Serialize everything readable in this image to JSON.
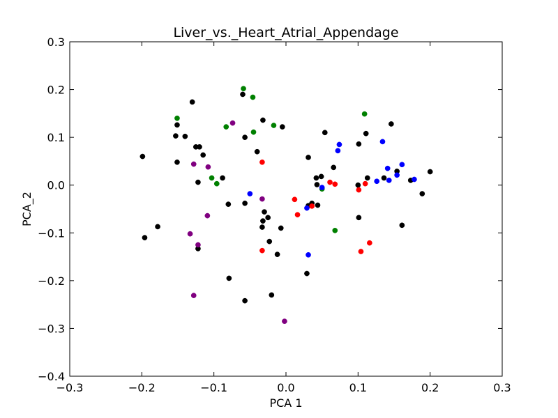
{
  "chart_data": {
    "type": "scatter",
    "title": "Liver_vs._Heart_Atrial_Appendage",
    "xlabel": "PCA 1",
    "ylabel": "PCA_2",
    "xlim": [
      -0.3,
      0.3
    ],
    "ylim": [
      -0.4,
      0.3
    ],
    "xticks": [
      -0.3,
      -0.2,
      -0.1,
      0.0,
      0.1,
      0.2,
      0.3
    ],
    "yticks": [
      -0.4,
      -0.3,
      -0.2,
      -0.1,
      0.0,
      0.1,
      0.2,
      0.3
    ],
    "xtick_labels": [
      "−0.3",
      "−0.2",
      "−0.1",
      "0.0",
      "0.1",
      "0.2",
      "0.3"
    ],
    "ytick_labels": [
      "−0.4",
      "−0.3",
      "−0.2",
      "−0.1",
      "0.0",
      "0.1",
      "0.2",
      "0.3"
    ],
    "grid": false,
    "series": [
      {
        "color": "#000000",
        "points": [
          [
            -0.199,
            0.06
          ],
          [
            -0.196,
            -0.11
          ],
          [
            -0.178,
            -0.087
          ],
          [
            -0.151,
            0.126
          ],
          [
            -0.153,
            0.103
          ],
          [
            -0.151,
            0.048
          ],
          [
            -0.14,
            0.102
          ],
          [
            -0.13,
            0.174
          ],
          [
            -0.125,
            0.08
          ],
          [
            -0.12,
            0.08
          ],
          [
            -0.115,
            0.063
          ],
          [
            -0.122,
            0.006
          ],
          [
            -0.122,
            -0.133
          ],
          [
            -0.088,
            0.015
          ],
          [
            -0.08,
            -0.04
          ],
          [
            -0.079,
            -0.195
          ],
          [
            -0.06,
            0.19
          ],
          [
            -0.057,
            0.1
          ],
          [
            -0.057,
            -0.038
          ],
          [
            -0.057,
            -0.242
          ],
          [
            -0.04,
            0.07
          ],
          [
            -0.032,
            0.136
          ],
          [
            -0.03,
            -0.056
          ],
          [
            -0.025,
            -0.068
          ],
          [
            -0.032,
            -0.075
          ],
          [
            -0.033,
            -0.088
          ],
          [
            -0.023,
            -0.118
          ],
          [
            -0.02,
            -0.23
          ],
          [
            -0.012,
            -0.145
          ],
          [
            -0.007,
            -0.09
          ],
          [
            -0.005,
            0.122
          ],
          [
            0.029,
            -0.185
          ],
          [
            0.031,
            0.058
          ],
          [
            0.036,
            -0.038
          ],
          [
            0.031,
            -0.043
          ],
          [
            0.042,
            0.015
          ],
          [
            0.044,
            -0.042
          ],
          [
            0.043,
            0.001
          ],
          [
            0.049,
            0.018
          ],
          [
            0.054,
            0.11
          ],
          [
            0.066,
            0.037
          ],
          [
            0.101,
            0.086
          ],
          [
            0.101,
            -0.068
          ],
          [
            0.1,
            0.0
          ],
          [
            0.111,
            0.108
          ],
          [
            0.113,
            0.015
          ],
          [
            0.146,
            0.128
          ],
          [
            0.136,
            0.015
          ],
          [
            0.154,
            0.029
          ],
          [
            0.161,
            -0.084
          ],
          [
            0.173,
            0.01
          ],
          [
            0.189,
            -0.018
          ],
          [
            0.2,
            0.028
          ]
        ]
      },
      {
        "color": "#008000",
        "points": [
          [
            -0.151,
            0.14
          ],
          [
            -0.103,
            0.015
          ],
          [
            -0.096,
            0.003
          ],
          [
            -0.083,
            0.122
          ],
          [
            -0.059,
            0.202
          ],
          [
            -0.046,
            0.184
          ],
          [
            -0.045,
            0.111
          ],
          [
            -0.017,
            0.125
          ],
          [
            0.05,
            -0.008
          ],
          [
            0.068,
            -0.095
          ],
          [
            0.109,
            0.149
          ]
        ]
      },
      {
        "color": "#800080",
        "points": [
          [
            -0.128,
            0.044
          ],
          [
            -0.108,
            0.038
          ],
          [
            -0.074,
            0.13
          ],
          [
            -0.133,
            -0.102
          ],
          [
            -0.122,
            -0.125
          ],
          [
            -0.109,
            -0.064
          ],
          [
            -0.033,
            -0.029
          ],
          [
            -0.128,
            -0.231
          ],
          [
            -0.002,
            -0.285
          ]
        ]
      },
      {
        "color": "#ff0000",
        "points": [
          [
            -0.033,
            0.048
          ],
          [
            -0.033,
            -0.137
          ],
          [
            0.012,
            -0.03
          ],
          [
            0.016,
            -0.062
          ],
          [
            0.036,
            -0.044
          ],
          [
            0.061,
            0.006
          ],
          [
            0.068,
            0.002
          ],
          [
            0.101,
            -0.01
          ],
          [
            0.11,
            0.003
          ],
          [
            0.104,
            -0.139
          ],
          [
            0.116,
            -0.121
          ]
        ]
      },
      {
        "color": "#0000ff",
        "points": [
          [
            -0.05,
            -0.018
          ],
          [
            0.029,
            -0.048
          ],
          [
            0.031,
            -0.146
          ],
          [
            0.05,
            -0.005
          ],
          [
            0.072,
            0.072
          ],
          [
            0.074,
            0.085
          ],
          [
            0.126,
            0.008
          ],
          [
            0.134,
            0.091
          ],
          [
            0.141,
            0.035
          ],
          [
            0.143,
            0.01
          ],
          [
            0.154,
            0.021
          ],
          [
            0.161,
            0.043
          ],
          [
            0.178,
            0.012
          ]
        ]
      }
    ]
  }
}
